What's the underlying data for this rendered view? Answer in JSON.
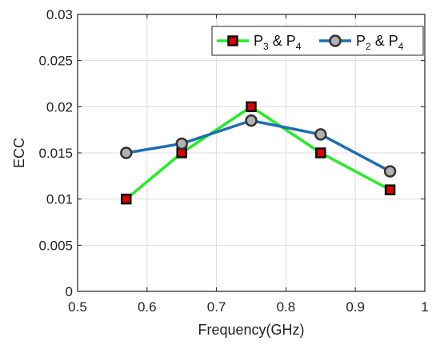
{
  "chart_data": {
    "type": "line",
    "xlabel": "Frequency(GHz)",
    "ylabel": "ECC",
    "xlim": [
      0.5,
      1
    ],
    "ylim": [
      0,
      0.03
    ],
    "x_ticks": [
      "0.5",
      "0.6",
      "0.7",
      "0.8",
      "0.9",
      "1"
    ],
    "y_ticks": [
      "0",
      "0.005",
      "0.01",
      "0.015",
      "0.02",
      "0.025",
      "0.03"
    ],
    "grid": true,
    "legend_position": "top-right",
    "series": [
      {
        "name": "P3 & P4",
        "label_parts": [
          "P",
          "3",
          " & P",
          "4"
        ],
        "color": "#22ee22",
        "marker": "square",
        "marker_fill": "#dd0000",
        "marker_edge": "#111111",
        "x": [
          0.57,
          0.65,
          0.75,
          0.85,
          0.95
        ],
        "y": [
          0.01,
          0.015,
          0.02,
          0.015,
          0.011
        ]
      },
      {
        "name": "P2 & P4",
        "label_parts": [
          "P",
          "2",
          " & P",
          "4"
        ],
        "color": "#1f6fb4",
        "marker": "circle",
        "marker_fill": "#b0b0b0",
        "marker_edge": "#333333",
        "x": [
          0.57,
          0.65,
          0.75,
          0.85,
          0.95
        ],
        "y": [
          0.015,
          0.016,
          0.0185,
          0.017,
          0.013
        ]
      }
    ]
  }
}
